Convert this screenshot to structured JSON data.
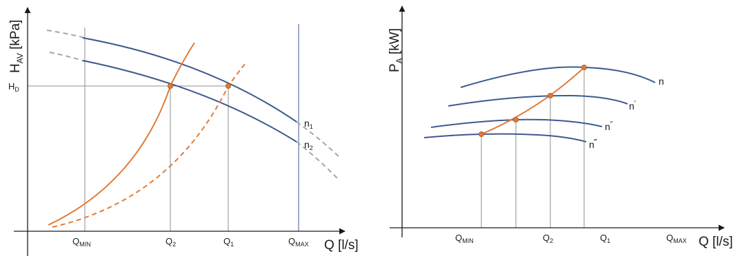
{
  "left_chart": {
    "y_axis": {
      "main": "H",
      "sub": "AV",
      "unit": " [kPa]"
    },
    "x_axis": {
      "main": "Q",
      "unit": " [l/s]"
    },
    "h_d": {
      "main": "H",
      "sub": "D"
    },
    "x_ticks": {
      "qmin": {
        "main": "Q",
        "sub": "MIN"
      },
      "q2": {
        "main": "Q",
        "sub": "2"
      },
      "q1": {
        "main": "Q",
        "sub": "1"
      },
      "qmax": {
        "main": "Q",
        "sub": "MAX"
      }
    },
    "curve_labels": {
      "n1": {
        "main": "n",
        "sub": "1"
      },
      "n2": {
        "main": "n",
        "sub": "2"
      }
    }
  },
  "right_chart": {
    "y_axis": {
      "main": "P",
      "sub": "A",
      "unit": " [kW]"
    },
    "x_axis": {
      "main": "Q",
      "unit": " [l/s]"
    },
    "x_ticks": {
      "qmin": {
        "main": "Q",
        "sub": "MIN"
      },
      "q2": {
        "main": "Q",
        "sub": "2"
      },
      "q1": {
        "main": "Q",
        "sub": "1"
      },
      "qmax": {
        "main": "Q",
        "sub": "MAX"
      }
    },
    "curve_labels": {
      "n": {
        "main": "n",
        "sup": ""
      },
      "n_prime": {
        "main": "n",
        "sup": "′"
      },
      "n_double": {
        "main": "n",
        "sup": "″"
      },
      "n_triple": {
        "main": "n",
        "sup": "‴"
      }
    }
  },
  "colors": {
    "pump_curve": "#3b5a8f",
    "system_curve": "#e07b39",
    "extension": "#a6a6a6",
    "grid": "#8c8c8c",
    "axis": "#1a1a1a"
  }
}
